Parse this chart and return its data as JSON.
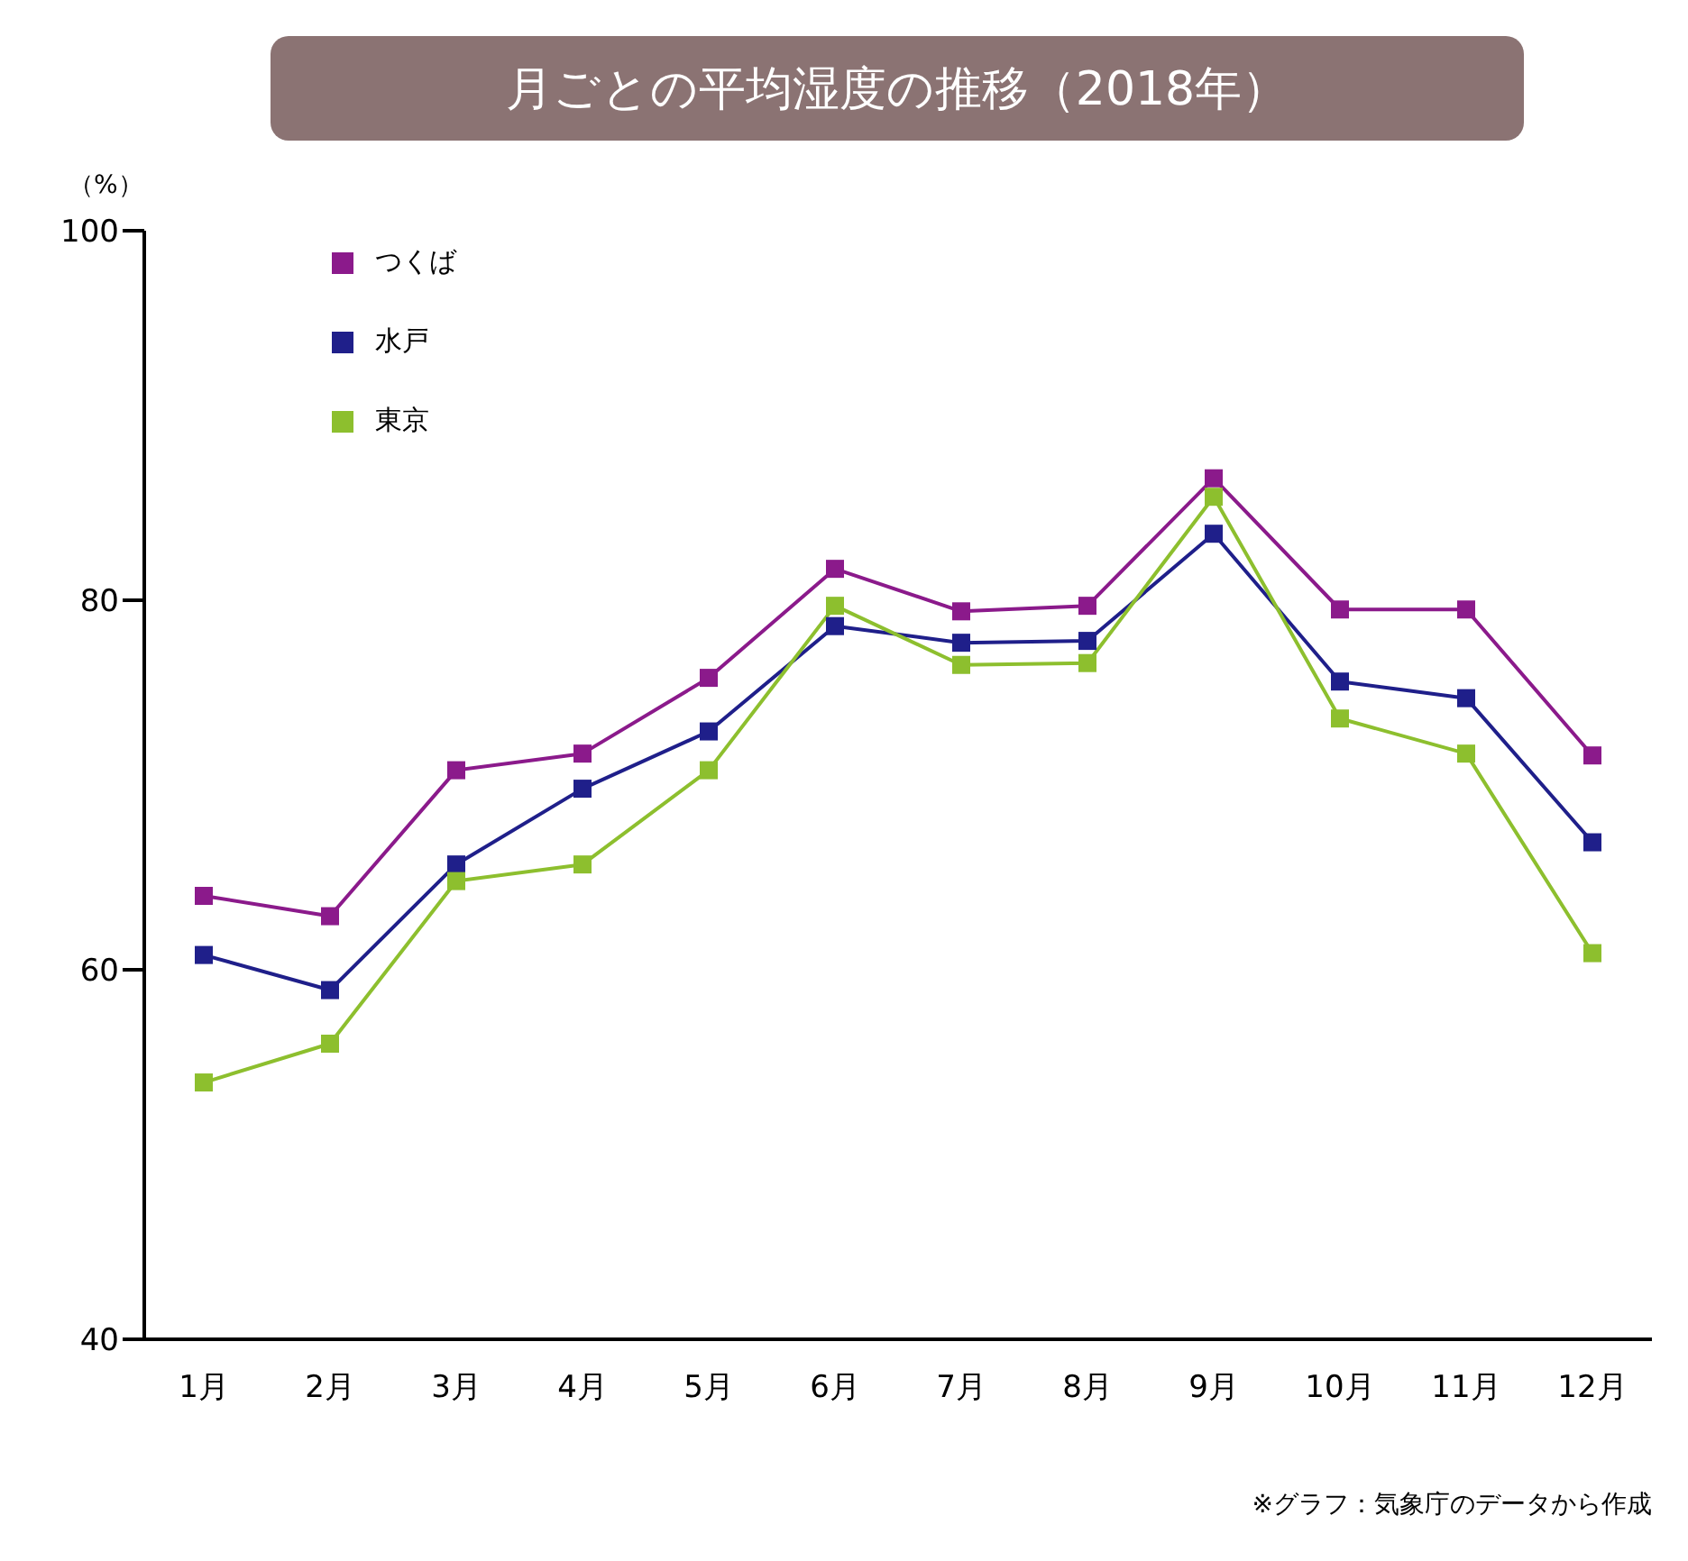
{
  "chart_data": {
    "type": "line",
    "title": "月ごとの平均湿度の推移（2018年）",
    "ylabel": "（%）",
    "annotations": [
      "※グラフ：気象庁のデータから作成"
    ],
    "categories": [
      "1月",
      "2月",
      "3月",
      "4月",
      "5月",
      "6月",
      "7月",
      "8月",
      "9月",
      "10月",
      "11月",
      "12月"
    ],
    "series": [
      {
        "name": "つくば",
        "color": "#8b1a8b",
        "values": [
          64.0,
          62.9,
          70.8,
          71.7,
          75.8,
          81.7,
          79.4,
          79.7,
          86.6,
          79.5,
          79.5,
          71.6
        ]
      },
      {
        "name": "水戸",
        "color": "#1f1f8a",
        "values": [
          60.8,
          58.9,
          65.7,
          69.8,
          72.9,
          78.6,
          77.7,
          77.8,
          83.6,
          75.6,
          74.7,
          66.9
        ]
      },
      {
        "name": "東京",
        "color": "#8dbf2e",
        "values": [
          53.9,
          56.0,
          64.8,
          65.7,
          70.8,
          79.7,
          76.5,
          76.6,
          85.6,
          73.6,
          71.7,
          60.9
        ]
      }
    ],
    "ylim": [
      40,
      100
    ],
    "yticks": [
      40,
      60,
      80,
      100
    ],
    "grid": false,
    "legend": "top left",
    "marker": "square",
    "line_style": "solid"
  }
}
